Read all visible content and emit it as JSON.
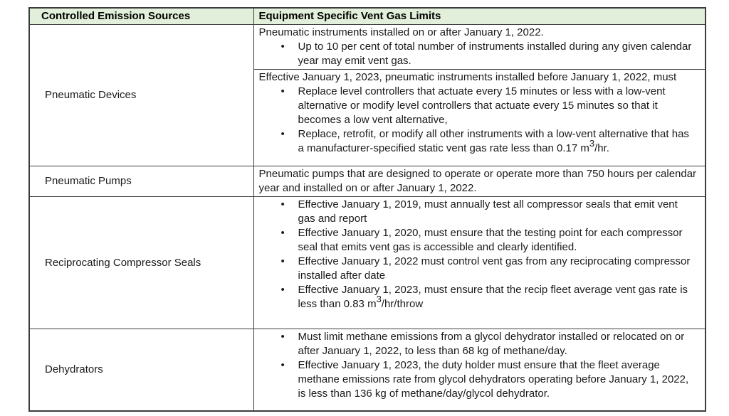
{
  "colors": {
    "header_background": "#e2efda",
    "border": "#3c3c3c",
    "text": "#1a1a1a"
  },
  "table": {
    "headers": [
      "Controlled Emission Sources",
      "Equipment Specific Vent Gas Limits"
    ],
    "rows": [
      {
        "source": "Pneumatic Devices",
        "subcells": [
          {
            "intro": "Pneumatic instruments installed on or after January 1, 2022.",
            "bullets": [
              "Up to 10 per cent of total number of instruments installed during any given calendar year may emit vent gas."
            ]
          },
          {
            "intro": "Effective January 1, 2023, pneumatic instruments installed before January 1, 2022, must",
            "bullets": [
              "Replace level controllers that actuate every 15 minutes or less with a low-vent alternative or modify level controllers that actuate every 15 minutes so that it becomes a low vent alternative,",
              "Replace, retrofit, or modify all other instruments with a low-vent alternative that has a manufacturer-specified static vent gas rate less than 0.17 m^3^/hr."
            ]
          }
        ]
      },
      {
        "source": "Pneumatic Pumps",
        "subcells": [
          {
            "intro": "Pneumatic pumps that are designed to operate or operate more than 750 hours per calendar year and installed on or after January 1, 2022.",
            "bullets": []
          }
        ]
      },
      {
        "source": "Reciprocating Compressor Seals",
        "subcells": [
          {
            "intro": "",
            "bullets": [
              "Effective January 1, 2019, must annually test all compressor seals that emit vent gas and report",
              "Effective January 1, 2020, must ensure that the testing point for each compressor seal that emits vent gas is accessible and clearly identified.",
              "Effective January 1, 2022 must control vent gas from any reciprocating compressor installed after date",
              "Effective January 1, 2023, must ensure that the recip fleet average vent gas rate is less than 0.83 m^3^/hr/throw"
            ]
          }
        ]
      },
      {
        "source": "Dehydrators",
        "subcells": [
          {
            "intro": "",
            "bullets": [
              "Must limit methane emissions from a glycol dehydrator installed or relocated on or after January 1, 2022, to less than 68 kg of methane/day.",
              "Effective January 1, 2023, the duty holder must ensure that the fleet average methane emissions rate from glycol dehydrators operating before January 1, 2022, is less than 136 kg of methane/day/glycol dehydrator."
            ]
          }
        ]
      }
    ]
  }
}
